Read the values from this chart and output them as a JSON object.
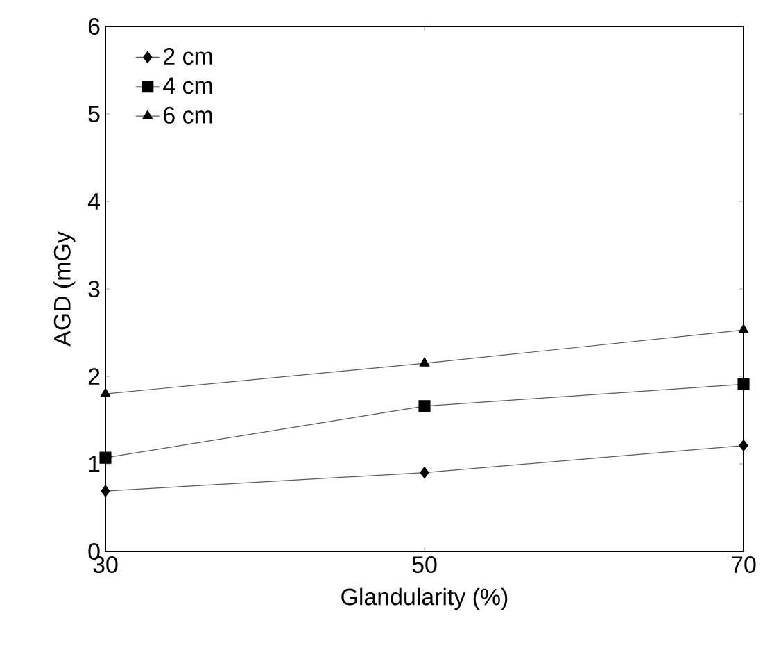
{
  "chart_data": {
    "type": "line",
    "xlabel": "Glandularity (%)",
    "ylabel": "AGD (mGy",
    "x": [
      30,
      50,
      70
    ],
    "xlim": [
      30,
      70
    ],
    "xticks": [
      30,
      50,
      70
    ],
    "ylim": [
      0,
      6
    ],
    "yticks": [
      0,
      1,
      2,
      3,
      4,
      5,
      6
    ],
    "grid": false,
    "legend": "top left",
    "series": [
      {
        "name": "2 cm",
        "color": "#000000",
        "marker": "diamond",
        "values": [
          0.69,
          0.9,
          1.21
        ]
      },
      {
        "name": "4 cm",
        "color": "#000000",
        "marker": "square",
        "values": [
          1.07,
          1.66,
          1.91
        ]
      },
      {
        "name": "6 cm",
        "color": "#000000",
        "marker": "triangle",
        "values": [
          1.8,
          2.15,
          2.53
        ]
      }
    ]
  }
}
